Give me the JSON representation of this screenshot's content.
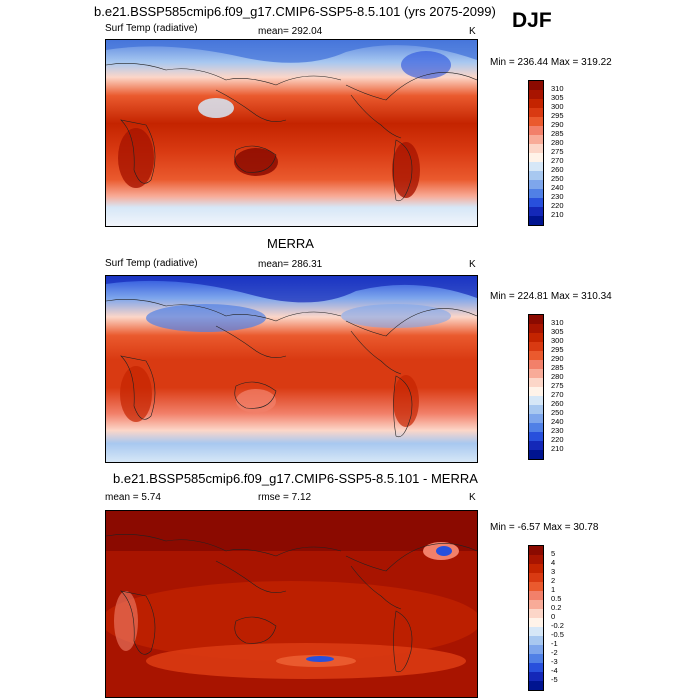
{
  "season": "DJF",
  "panels": [
    {
      "id": "model",
      "title": "b.e21.BSSP585cmip6.f09_g17.CMIP6-SSP5-8.5.101 (yrs 2075-2099)",
      "left_label": "Surf Temp (radiative)",
      "stat_label": "mean= 292.04",
      "units": "K",
      "minmax": "Min = 236.44 Max = 319.22"
    },
    {
      "id": "obs",
      "title": "MERRA",
      "left_label": "Surf Temp (radiative)",
      "stat_label": "mean= 286.31",
      "units": "K",
      "minmax": "Min = 224.81 Max = 310.34"
    },
    {
      "id": "diff",
      "title": "b.e21.BSSP585cmip6.f09_g17.CMIP6-SSP5-8.5.101 - MERRA",
      "left_label": "mean =   5.74",
      "stat_label": "rmse =   7.12",
      "units": "K",
      "minmax": "Min =  -6.57 Max =  30.78"
    }
  ],
  "colorbar_abs": {
    "labels": [
      "310",
      "305",
      "300",
      "295",
      "290",
      "285",
      "280",
      "275",
      "270",
      "260",
      "250",
      "240",
      "230",
      "220",
      "210"
    ],
    "colors": [
      "#8b0a00",
      "#a81400",
      "#c42400",
      "#d93a12",
      "#ea5a2e",
      "#f2806a",
      "#f8ab98",
      "#fcd6c8",
      "#fff3e9",
      "#d6e7f7",
      "#a8c8f0",
      "#7ea6ec",
      "#5080e6",
      "#2850dc",
      "#1428b8",
      "#001490"
    ]
  },
  "colorbar_diff": {
    "labels": [
      "5",
      "4",
      "3",
      "2",
      "1",
      "0.5",
      "0.2",
      "0",
      "-0.2",
      "-0.5",
      "-1",
      "-2",
      "-3",
      "-4",
      "-5"
    ],
    "colors": [
      "#8b0a00",
      "#a81400",
      "#c42400",
      "#d93a12",
      "#ea5a2e",
      "#f2806a",
      "#f8ab98",
      "#fcd6c8",
      "#fff3e9",
      "#d6e7f7",
      "#a8c8f0",
      "#7ea6ec",
      "#5080e6",
      "#2850dc",
      "#1428b8",
      "#001490"
    ]
  }
}
